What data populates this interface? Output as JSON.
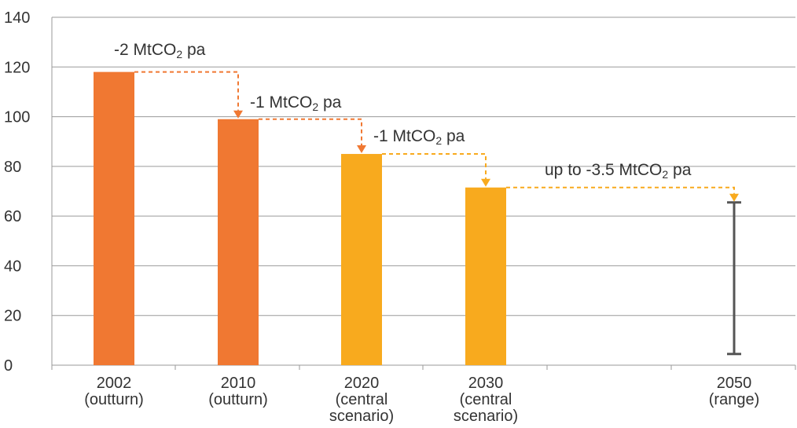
{
  "chart_data": {
    "type": "bar",
    "title": "",
    "xlabel": "",
    "ylabel": "",
    "ylim": [
      0,
      140
    ],
    "yticks": [
      "0",
      "20",
      "40",
      "60",
      "80",
      "100",
      "120",
      "140"
    ],
    "grid": true,
    "categories": [
      {
        "label": [
          "2002",
          "(outturn)"
        ],
        "value": 118,
        "color": "#F07832"
      },
      {
        "label": [
          "2010",
          "(outturn)"
        ],
        "value": 99,
        "color": "#F07832"
      },
      {
        "label": [
          "2020",
          "(central",
          "scenario)"
        ],
        "value": 85,
        "color": "#F8AA1E"
      },
      {
        "label": [
          "2030",
          "(central",
          "scenario)"
        ],
        "value": 71.5,
        "color": "#F8AA1E"
      },
      {
        "label": [
          "2050",
          "(range)"
        ],
        "range": [
          4.5,
          65.5
        ],
        "color": "#555555"
      }
    ],
    "annotations": [
      {
        "from": 0,
        "to": 1,
        "text": "-2 MtCO",
        "sub": "2",
        "suffix": " pa",
        "color": "#F07832"
      },
      {
        "from": 1,
        "to": 2,
        "text": "-1 MtCO",
        "sub": "2",
        "suffix": " pa",
        "color": "#F07832"
      },
      {
        "from": 2,
        "to": 3,
        "text": "-1 MtCO",
        "sub": "2",
        "suffix": " pa",
        "color": "#F8AA1E"
      },
      {
        "from": 3,
        "to": 4,
        "text": "up to -3.5 MtCO",
        "sub": "2",
        "suffix": " pa",
        "color": "#F8AA1E"
      }
    ]
  }
}
